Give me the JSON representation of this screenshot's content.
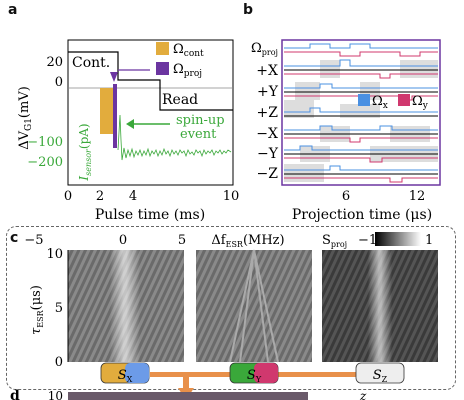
{
  "panel_labels": {
    "a": "a",
    "b": "b",
    "c": "c",
    "d": "d"
  },
  "panel_a": {
    "ylabel": "ΔV",
    "ylabel_sub": "G1",
    "ylabel_unit": "(mV)",
    "y2label": "I",
    "y2label_sub": "sensor",
    "y2label_unit": "(pA)",
    "xlabel": "Pulse time (ms)",
    "x_ticks": [
      "0",
      "2",
      "4",
      "10"
    ],
    "y_ticks_upper": [
      "20",
      "0"
    ],
    "y_ticks_lower": [
      "−100",
      "−200"
    ],
    "cont_label": "Cont.",
    "read_label": "Read",
    "annotation": "spin-up",
    "annotation2": "event",
    "legend": [
      {
        "label": "Ω",
        "sub": "cont",
        "color": "#e2ac3d"
      },
      {
        "label": "Ω",
        "sub": "proj",
        "color": "#6b35a0"
      }
    ]
  },
  "panel_b": {
    "xlabel": "Projection time (μs)",
    "x_ticks": [
      "6",
      "12"
    ],
    "row_labels": [
      "Ω",
      "+X",
      "+Y",
      "+Z",
      "−X",
      "−Y",
      "−Z"
    ],
    "row0_sub": "proj",
    "legend": [
      {
        "label": "Ω",
        "sub": "x",
        "color": "#4a90e2"
      },
      {
        "label": "Ω",
        "sub": "y",
        "color": "#d0386e"
      }
    ]
  },
  "panel_c": {
    "ylabel": "τ",
    "ylabel_sub": "ESR",
    "ylabel_unit": "(μs)",
    "y_ticks": [
      "10",
      "5",
      "0"
    ],
    "top_x_ticks": [
      "−5",
      "0",
      "5"
    ],
    "top_xlabel": "Δf",
    "top_xlabel_sub": "ESR",
    "top_xlabel_unit": "(MHz)",
    "colorbar_label": "S",
    "colorbar_sub": "proj",
    "colorbar_min": "−1",
    "colorbar_max": "1",
    "tags": [
      {
        "label": "S",
        "sub": "X"
      },
      {
        "label": "S",
        "sub": "Y"
      },
      {
        "label": "S",
        "sub": "Z"
      }
    ]
  },
  "panel_d": {
    "y_tick": "10",
    "top_right_text": "z"
  },
  "colors": {
    "green": "#3aa83a",
    "purple": "#6b35a0",
    "orange": "#e2ac3d",
    "blue": "#4a90e2",
    "magenta": "#d0386e",
    "arrow": "#e8904a"
  }
}
